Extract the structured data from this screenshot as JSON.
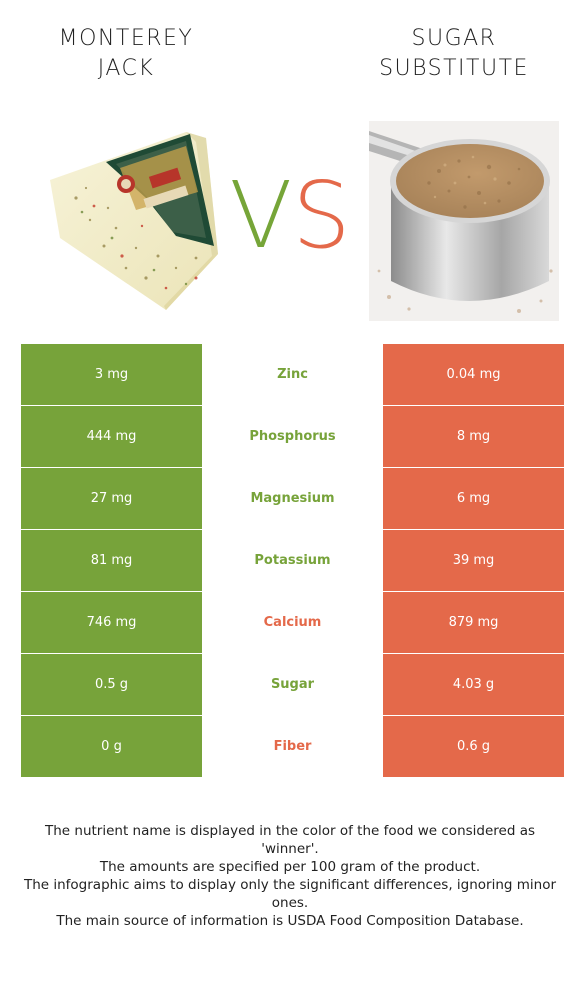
{
  "foods": {
    "left": {
      "title_line1": "MONTEREY",
      "title_line2": "JACK",
      "image": "monterey-jack-cheese-wedge",
      "color": "#77a33a"
    },
    "right": {
      "title_line1": "SUGAR",
      "title_line2": "SUBSTITUTE",
      "image": "brown-sugar-in-measuring-cup",
      "color": "#e4694a"
    }
  },
  "vs": {
    "v": "V",
    "s": "S"
  },
  "rows": [
    {
      "left": "3 mg",
      "nutrient": "Zinc",
      "right": "0.04 mg",
      "winner": "left"
    },
    {
      "left": "444 mg",
      "nutrient": "Phosphorus",
      "right": "8 mg",
      "winner": "left"
    },
    {
      "left": "27 mg",
      "nutrient": "Magnesium",
      "right": "6 mg",
      "winner": "left"
    },
    {
      "left": "81 mg",
      "nutrient": "Potassium",
      "right": "39 mg",
      "winner": "left"
    },
    {
      "left": "746 mg",
      "nutrient": "Calcium",
      "right": "879 mg",
      "winner": "right"
    },
    {
      "left": "0.5 g",
      "nutrient": "Sugar",
      "right": "4.03 g",
      "winner": "left"
    },
    {
      "left": "0 g",
      "nutrient": "Fiber",
      "right": "0.6 g",
      "winner": "right"
    }
  ],
  "footnote": {
    "line1": "The nutrient name is displayed in the color of the food we considered as 'winner'.",
    "line2": "The amounts are specified per 100 gram of the product.",
    "line3": "The infographic aims to display only the significant differences, ignoring minor ones.",
    "line4": "The main source of information is USDA Food Composition Database."
  }
}
